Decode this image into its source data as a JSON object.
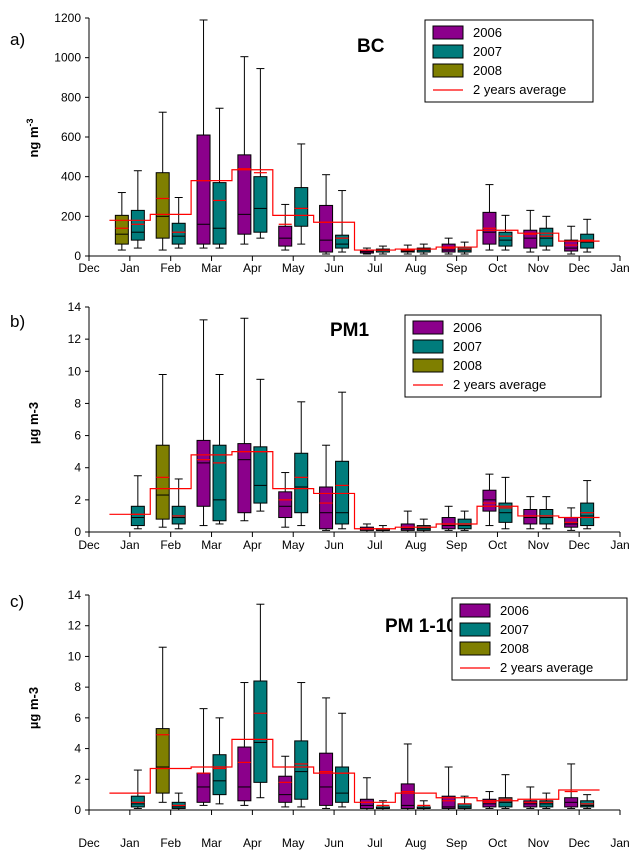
{
  "colors": {
    "y2006": "#8B008B",
    "y2007": "#007C7C",
    "y2008": "#7F7F00",
    "avg": "#FF0000"
  },
  "months": [
    "Dec",
    "Jan",
    "Feb",
    "Mar",
    "Apr",
    "May",
    "Jun",
    "Jul",
    "Aug",
    "Sep",
    "Oct",
    "Nov",
    "Dec",
    "Jan"
  ],
  "legend": [
    "2006",
    "2007",
    "2008",
    "2 years average"
  ],
  "chart_data": [
    {
      "panel": "a)",
      "title": "BC",
      "type": "boxplot",
      "ylabel": "ng m-3",
      "ylabel_base": "ng m",
      "ylabel_sup": "-3",
      "ylim": [
        0,
        1200
      ],
      "yticks": [
        0,
        200,
        400,
        600,
        800,
        1000,
        1200
      ],
      "categories": [
        "Jan",
        "Feb",
        "Mar",
        "Apr",
        "May",
        "Jun",
        "Jul",
        "Aug",
        "Sep",
        "Oct",
        "Nov",
        "Dec"
      ],
      "series": [
        {
          "name": "2006",
          "boxes": [
            null,
            null,
            {
              "min": 40,
              "q1": 60,
              "median": 160,
              "q3": 610,
              "max": 1190,
              "mean": 380
            },
            {
              "min": 60,
              "q1": 110,
              "median": 210,
              "q3": 510,
              "max": 1005,
              "mean": 440
            },
            {
              "min": 30,
              "q1": 50,
              "median": 90,
              "q3": 150,
              "max": 260,
              "mean": 160
            },
            {
              "min": 10,
              "q1": 20,
              "median": 80,
              "q3": 255,
              "max": 410,
              "mean": 170
            },
            {
              "min": 10,
              "q1": 15,
              "median": 22,
              "q3": 30,
              "max": 40,
              "mean": 30
            },
            {
              "min": 10,
              "q1": 20,
              "median": 25,
              "q3": 35,
              "max": 55,
              "mean": 30
            },
            {
              "min": 10,
              "q1": 20,
              "median": 30,
              "q3": 60,
              "max": 90,
              "mean": 40
            },
            {
              "min": 30,
              "q1": 60,
              "median": 120,
              "q3": 220,
              "max": 360,
              "mean": 140
            },
            {
              "min": 20,
              "q1": 40,
              "median": 90,
              "q3": 130,
              "max": 230,
              "mean": 110
            },
            {
              "min": 10,
              "q1": 25,
              "median": 40,
              "q3": 80,
              "max": 150,
              "mean": 55
            }
          ]
        },
        {
          "name": "2007",
          "boxes": [
            {
              "min": 40,
              "q1": 80,
              "median": 120,
              "q3": 230,
              "max": 430,
              "mean": 160
            },
            {
              "min": 40,
              "q1": 60,
              "median": 100,
              "q3": 165,
              "max": 295,
              "mean": 120
            },
            {
              "min": 40,
              "q1": 60,
              "median": 140,
              "q3": 370,
              "max": 745,
              "mean": 280
            },
            {
              "min": 90,
              "q1": 120,
              "median": 240,
              "q3": 400,
              "max": 945,
              "mean": 420
            },
            {
              "min": 60,
              "q1": 150,
              "median": 240,
              "q3": 345,
              "max": 565,
              "mean": 240
            },
            {
              "min": 20,
              "q1": 40,
              "median": 60,
              "q3": 105,
              "max": 330,
              "mean": 90
            },
            {
              "min": 10,
              "q1": 20,
              "median": 28,
              "q3": 35,
              "max": 50,
              "mean": 30
            },
            {
              "min": 10,
              "q1": 20,
              "median": 30,
              "q3": 40,
              "max": 60,
              "mean": 35
            },
            {
              "min": 10,
              "q1": 20,
              "median": 30,
              "q3": 45,
              "max": 70,
              "mean": 35
            },
            {
              "min": 30,
              "q1": 50,
              "median": 80,
              "q3": 120,
              "max": 205,
              "mean": 100
            },
            {
              "min": 30,
              "q1": 50,
              "median": 90,
              "q3": 140,
              "max": 200,
              "mean": 100
            },
            {
              "min": 20,
              "q1": 40,
              "median": 70,
              "q3": 110,
              "max": 185,
              "mean": 80
            }
          ]
        },
        {
          "name": "2008",
          "boxes": [
            {
              "min": 30,
              "q1": 60,
              "median": 110,
              "q3": 205,
              "max": 320,
              "mean": 140
            },
            {
              "min": 30,
              "q1": 90,
              "median": 200,
              "q3": 420,
              "max": 725,
              "mean": 290
            },
            null,
            null,
            null,
            null,
            null,
            null,
            null,
            null,
            null,
            null
          ]
        },
        {
          "name": "2 years average",
          "values": [
            180,
            210,
            380,
            435,
            205,
            170,
            30,
            35,
            45,
            130,
            115,
            75
          ]
        }
      ]
    },
    {
      "panel": "b)",
      "title": "PM1",
      "type": "boxplot",
      "ylabel": "µg m-3",
      "ylim": [
        0,
        14
      ],
      "yticks": [
        0,
        2,
        4,
        6,
        8,
        10,
        12,
        14
      ],
      "categories": [
        "Jan",
        "Feb",
        "Mar",
        "Apr",
        "May",
        "Jun",
        "Jul",
        "Aug",
        "Sep",
        "Oct",
        "Nov",
        "Dec"
      ],
      "series": [
        {
          "name": "2006",
          "boxes": [
            null,
            null,
            {
              "min": 0.4,
              "q1": 1.6,
              "median": 4.3,
              "q3": 5.7,
              "max": 13.2,
              "mean": 4.5
            },
            {
              "min": 0.7,
              "q1": 1.2,
              "median": 4.5,
              "q3": 5.5,
              "max": 13.3,
              "mean": 5.0
            },
            {
              "min": 0.3,
              "q1": 0.9,
              "median": 1.6,
              "q3": 2.5,
              "max": 3.7,
              "mean": 2.0
            },
            {
              "min": 0.1,
              "q1": 0.2,
              "median": 1.2,
              "q3": 2.8,
              "max": 5.4,
              "mean": 1.8
            },
            {
              "min": 0.0,
              "q1": 0.1,
              "median": 0.2,
              "q3": 0.3,
              "max": 0.5,
              "mean": 0.2
            },
            {
              "min": 0.0,
              "q1": 0.1,
              "median": 0.2,
              "q3": 0.5,
              "max": 1.3,
              "mean": 0.3
            },
            {
              "min": 0.1,
              "q1": 0.2,
              "median": 0.4,
              "q3": 0.9,
              "max": 1.6,
              "mean": 0.5
            },
            {
              "min": 0.4,
              "q1": 1.3,
              "median": 2.0,
              "q3": 2.6,
              "max": 3.6,
              "mean": 1.8
            },
            {
              "min": 0.2,
              "q1": 0.5,
              "median": 0.9,
              "q3": 1.4,
              "max": 2.2,
              "mean": 1.0
            },
            {
              "min": 0.1,
              "q1": 0.3,
              "median": 0.5,
              "q3": 0.9,
              "max": 1.5,
              "mean": 0.6
            }
          ]
        },
        {
          "name": "2007",
          "boxes": [
            {
              "min": 0.2,
              "q1": 0.4,
              "median": 0.9,
              "q3": 1.6,
              "max": 3.5,
              "mean": 1.1
            },
            {
              "min": 0.2,
              "q1": 0.5,
              "median": 0.9,
              "q3": 1.6,
              "max": 3.3,
              "mean": 1.0
            },
            {
              "min": 0.5,
              "q1": 0.7,
              "median": 2.0,
              "q3": 5.4,
              "max": 9.8,
              "mean": 4.3
            },
            {
              "min": 1.3,
              "q1": 1.8,
              "median": 2.9,
              "q3": 5.3,
              "max": 9.5,
              "mean": 5.0
            },
            {
              "min": 0.4,
              "q1": 1.2,
              "median": 2.8,
              "q3": 4.9,
              "max": 8.1,
              "mean": 3.4
            },
            {
              "min": 0.2,
              "q1": 0.5,
              "median": 1.2,
              "q3": 4.4,
              "max": 8.7,
              "mean": 2.9
            },
            {
              "min": 0.0,
              "q1": 0.1,
              "median": 0.1,
              "q3": 0.2,
              "max": 0.4,
              "mean": 0.2
            },
            {
              "min": 0.0,
              "q1": 0.1,
              "median": 0.2,
              "q3": 0.4,
              "max": 0.8,
              "mean": 0.3
            },
            {
              "min": 0.1,
              "q1": 0.2,
              "median": 0.4,
              "q3": 0.8,
              "max": 1.3,
              "mean": 0.5
            },
            {
              "min": 0.2,
              "q1": 0.6,
              "median": 1.2,
              "q3": 1.8,
              "max": 3.4,
              "mean": 1.5
            },
            {
              "min": 0.2,
              "q1": 0.5,
              "median": 0.9,
              "q3": 1.4,
              "max": 2.2,
              "mean": 1.0
            },
            {
              "min": 0.2,
              "q1": 0.4,
              "median": 1.0,
              "q3": 1.8,
              "max": 3.2,
              "mean": 1.2
            }
          ]
        },
        {
          "name": "2008",
          "boxes": [
            null,
            {
              "min": 0.3,
              "q1": 0.8,
              "median": 2.3,
              "q3": 5.4,
              "max": 9.8,
              "mean": 3.4
            },
            null,
            null,
            null,
            null,
            null,
            null,
            null,
            null,
            null,
            null
          ]
        },
        {
          "name": "2 years average",
          "values": [
            1.1,
            2.7,
            4.8,
            5.0,
            2.7,
            2.4,
            0.2,
            0.3,
            0.5,
            1.6,
            1.0,
            0.9
          ]
        }
      ]
    },
    {
      "panel": "c)",
      "title": "PM 1-10",
      "type": "boxplot",
      "ylabel": "µg m-3",
      "ylim": [
        0,
        14
      ],
      "yticks": [
        0,
        2,
        4,
        6,
        8,
        10,
        12,
        14
      ],
      "categories": [
        "Jan",
        "Feb",
        "Mar",
        "Apr",
        "May",
        "Jun",
        "Jul",
        "Aug",
        "Sep",
        "Oct",
        "Nov",
        "Dec"
      ],
      "series": [
        {
          "name": "2006",
          "boxes": [
            null,
            null,
            {
              "min": 0.3,
              "q1": 0.5,
              "median": 1.5,
              "q3": 2.4,
              "max": 6.6,
              "mean": 2.4
            },
            {
              "min": 0.3,
              "q1": 0.6,
              "median": 1.5,
              "q3": 4.1,
              "max": 8.3,
              "mean": 3.1
            },
            {
              "min": 0.2,
              "q1": 0.5,
              "median": 1.0,
              "q3": 2.2,
              "max": 3.5,
              "mean": 1.8
            },
            {
              "min": 0.1,
              "q1": 0.3,
              "median": 1.5,
              "q3": 3.7,
              "max": 7.3,
              "mean": 2.5
            },
            {
              "min": 0.0,
              "q1": 0.1,
              "median": 0.3,
              "q3": 0.7,
              "max": 2.1,
              "mean": 0.5
            },
            {
              "min": 0.0,
              "q1": 0.1,
              "median": 0.3,
              "q3": 1.7,
              "max": 4.3,
              "mean": 1.2
            },
            {
              "min": 0.0,
              "q1": 0.1,
              "median": 0.2,
              "q3": 0.9,
              "max": 2.8,
              "mean": 0.6
            },
            {
              "min": 0.1,
              "q1": 0.2,
              "median": 0.4,
              "q3": 0.7,
              "max": 1.2,
              "mean": 0.5
            },
            {
              "min": 0.1,
              "q1": 0.2,
              "median": 0.4,
              "q3": 0.6,
              "max": 1.5,
              "mean": 0.5
            },
            {
              "min": 0.1,
              "q1": 0.2,
              "median": 0.5,
              "q3": 0.8,
              "max": 3.0,
              "mean": 1.2
            }
          ]
        },
        {
          "name": "2007",
          "boxes": [
            {
              "min": 0.1,
              "q1": 0.2,
              "median": 0.4,
              "q3": 0.9,
              "max": 2.6,
              "mean": 0.5
            },
            {
              "min": 0.0,
              "q1": 0.1,
              "median": 0.2,
              "q3": 0.5,
              "max": 1.1,
              "mean": 0.3
            },
            {
              "min": 0.4,
              "q1": 1.0,
              "median": 1.9,
              "q3": 3.6,
              "max": 6.0,
              "mean": 2.7
            },
            {
              "min": 0.8,
              "q1": 1.8,
              "median": 4.4,
              "q3": 8.4,
              "max": 13.4,
              "mean": 6.3
            },
            {
              "min": 0.2,
              "q1": 0.7,
              "median": 2.5,
              "q3": 4.5,
              "max": 8.3,
              "mean": 3.0
            },
            {
              "min": 0.2,
              "q1": 0.5,
              "median": 1.1,
              "q3": 2.8,
              "max": 6.3,
              "mean": 2.4
            },
            {
              "min": 0.0,
              "q1": 0.1,
              "median": 0.1,
              "q3": 0.2,
              "max": 0.6,
              "mean": 0.3
            },
            {
              "min": 0.0,
              "q1": 0.1,
              "median": 0.1,
              "q3": 0.2,
              "max": 0.6,
              "mean": 0.3
            },
            {
              "min": 0.0,
              "q1": 0.1,
              "median": 0.2,
              "q3": 0.4,
              "max": 0.9,
              "mean": 0.4
            },
            {
              "min": 0.1,
              "q1": 0.2,
              "median": 0.5,
              "q3": 0.8,
              "max": 2.3,
              "mean": 0.7
            },
            {
              "min": 0.1,
              "q1": 0.2,
              "median": 0.4,
              "q3": 0.6,
              "max": 1.1,
              "mean": 0.5
            },
            {
              "min": 0.1,
              "q1": 0.2,
              "median": 0.3,
              "q3": 0.6,
              "max": 1.0,
              "mean": 0.4
            }
          ]
        },
        {
          "name": "2008",
          "boxes": [
            null,
            {
              "min": 0.5,
              "q1": 1.1,
              "median": 2.8,
              "q3": 5.3,
              "max": 10.6,
              "mean": 4.9
            },
            null,
            null,
            null,
            null,
            null,
            null,
            null,
            null,
            null,
            null
          ]
        },
        {
          "name": "2 years average",
          "values": [
            1.1,
            2.7,
            2.8,
            4.6,
            2.8,
            2.4,
            0.5,
            1.1,
            0.8,
            0.6,
            0.7,
            1.3
          ]
        }
      ]
    }
  ]
}
